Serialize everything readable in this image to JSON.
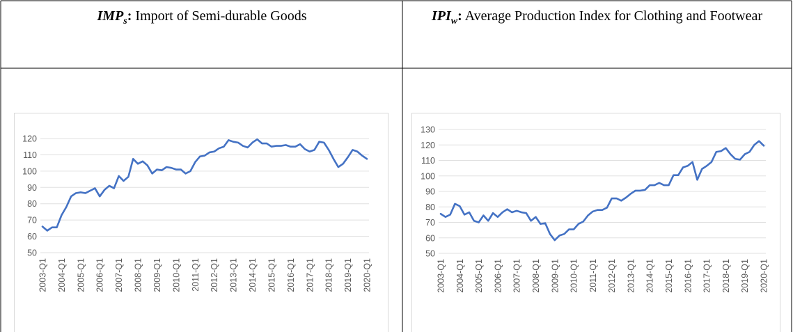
{
  "table": {
    "headers": [
      {
        "symbol": "IMP",
        "subscript": "s",
        "separator": ":",
        "description": "Import of Semi-durable Goods"
      },
      {
        "symbol": "IPI",
        "subscript": "w",
        "separator": ":",
        "description": "Average Production Index for Clothing and Footwear"
      }
    ]
  },
  "chart_data": [
    {
      "type": "line",
      "grid": true,
      "categories": [
        "2003-Q1",
        null,
        null,
        null,
        "2004-Q1",
        null,
        null,
        null,
        "2005-Q1",
        null,
        null,
        null,
        "2006-Q1",
        null,
        null,
        null,
        "2007-Q1",
        null,
        null,
        null,
        "2008-Q1",
        null,
        null,
        null,
        "2009-Q1",
        null,
        null,
        null,
        "2010-Q1",
        null,
        null,
        null,
        "2011-Q1",
        null,
        null,
        null,
        "2012-Q1",
        null,
        null,
        null,
        "2013-Q1",
        null,
        null,
        null,
        "2014-Q1",
        null,
        null,
        null,
        "2015-Q1",
        null,
        null,
        null,
        "2016-Q1",
        null,
        null,
        null,
        "2017-Q1",
        null,
        null,
        null,
        "2018-Q1",
        null,
        null,
        null,
        "2019-Q1",
        null,
        null,
        null,
        "2020-Q1"
      ],
      "series": [
        {
          "color": "#4472c4",
          "values": [
            66,
            63.5,
            65.5,
            65.5,
            73,
            78,
            84.5,
            86.5,
            87,
            86.5,
            88,
            89.5,
            84.5,
            88.5,
            91,
            89.5,
            97,
            94,
            96.5,
            107.5,
            104.5,
            106,
            103.5,
            98.5,
            101,
            100.5,
            102.5,
            102,
            101,
            101,
            98.5,
            100,
            105.5,
            109,
            109.5,
            111.5,
            112,
            114,
            115,
            119,
            118,
            117.5,
            115.5,
            114.5,
            117.5,
            119.5,
            117,
            117,
            115,
            115.5,
            115.5,
            116,
            115,
            115,
            116.5,
            113.5,
            112,
            113,
            118,
            117.5,
            113,
            107.5,
            102.5,
            104.5,
            108.5,
            113,
            112,
            109.5,
            107.5
          ]
        }
      ],
      "ylim": [
        50,
        120
      ],
      "yticks": [
        50,
        60,
        70,
        80,
        90,
        100,
        110,
        120
      ]
    },
    {
      "type": "line",
      "grid": true,
      "categories": [
        "2003-Q1",
        null,
        null,
        null,
        "2004-Q1",
        null,
        null,
        null,
        "2005-Q1",
        null,
        null,
        null,
        "2006-Q1",
        null,
        null,
        null,
        "2007-Q1",
        null,
        null,
        null,
        "2008-Q1",
        null,
        null,
        null,
        "2009-Q1",
        null,
        null,
        null,
        "2010-Q1",
        null,
        null,
        null,
        "2011-Q1",
        null,
        null,
        null,
        "2012-Q1",
        null,
        null,
        null,
        "2013-Q1",
        null,
        null,
        null,
        "2014-Q1",
        null,
        null,
        null,
        "2015-Q1",
        null,
        null,
        null,
        "2016-Q1",
        null,
        null,
        null,
        "2017-Q1",
        null,
        null,
        null,
        "2018-Q1",
        null,
        null,
        null,
        "2019-Q1",
        null,
        null,
        null,
        "2020-Q1"
      ],
      "series": [
        {
          "color": "#4472c4",
          "values": [
            75.5,
            73.5,
            75,
            82,
            80.5,
            75,
            76.5,
            71,
            70,
            74.5,
            71,
            76,
            73.5,
            76.5,
            78.5,
            76.5,
            77.5,
            76.5,
            76,
            71,
            73.5,
            69,
            69.5,
            62.5,
            58.5,
            61.5,
            62.5,
            65.5,
            65.5,
            69,
            70.5,
            74.5,
            77,
            78,
            78,
            79.5,
            85.5,
            85.5,
            84,
            86,
            88.5,
            90.5,
            90.5,
            91,
            94,
            94,
            95.5,
            94,
            94,
            100.5,
            100.5,
            105.5,
            106.5,
            109,
            97.5,
            104.5,
            106.5,
            109,
            115.5,
            116,
            118,
            114,
            111,
            110.5,
            114,
            115.5,
            120,
            122.5,
            119.5
          ]
        }
      ],
      "ylim": [
        50,
        130
      ],
      "yticks": [
        50,
        60,
        70,
        80,
        90,
        100,
        110,
        120,
        130
      ]
    }
  ]
}
